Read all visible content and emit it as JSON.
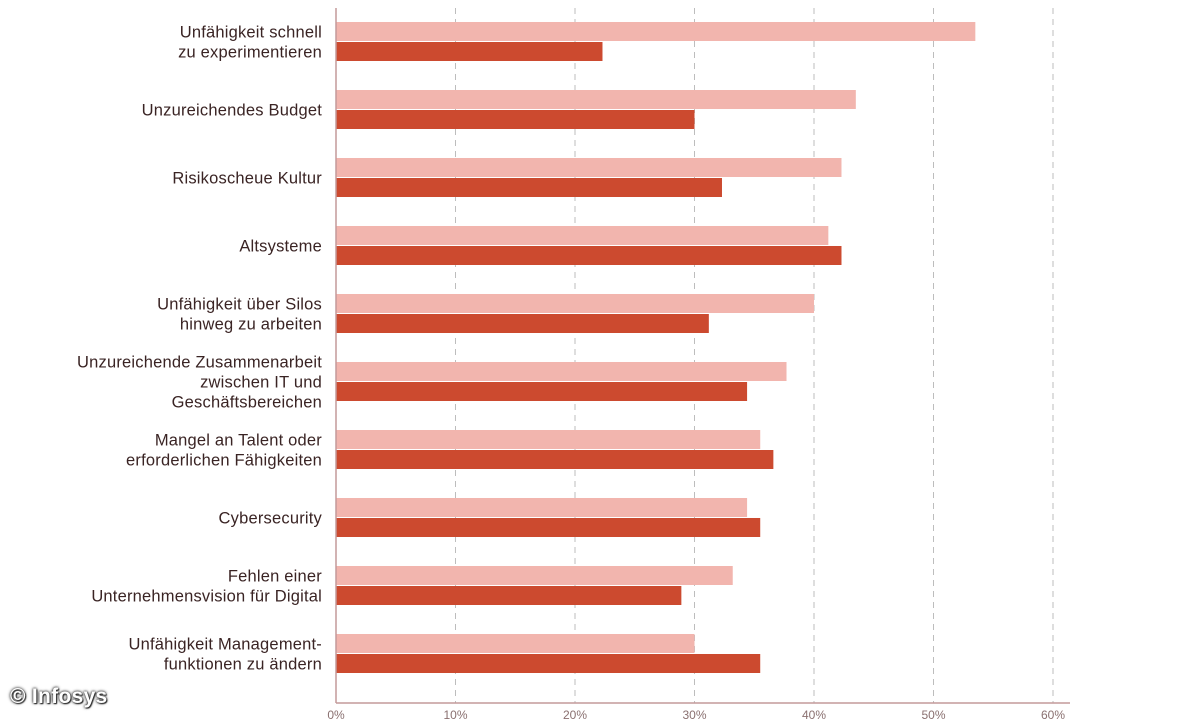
{
  "watermark": "© Infosys",
  "chart_data": {
    "type": "bar",
    "orientation": "horizontal",
    "title": "",
    "xlabel": "",
    "ylabel": "",
    "xlim": [
      0,
      60
    ],
    "x_ticks": [
      "0%",
      "10%",
      "20%",
      "30%",
      "40%",
      "50%",
      "60%"
    ],
    "grid": "vertical dashed",
    "colors": {
      "light": "#f2b5ae",
      "dark": "#cc4a2f",
      "axis": "#c49a9a",
      "grid": "#bdbdbd"
    },
    "categories": [
      [
        "Unfähigkeit schnell",
        "zu experimentieren"
      ],
      [
        "Unzureichendes Budget"
      ],
      [
        "Risikoscheue Kultur"
      ],
      [
        "Altsysteme"
      ],
      [
        "Unfähigkeit über Silos",
        "hinweg zu arbeiten"
      ],
      [
        "Unzureichende Zusammenarbeit",
        "zwischen IT und",
        "Geschäftsbereichen"
      ],
      [
        "Mangel an Talent oder",
        "erforderlichen Fähigkeiten"
      ],
      [
        "Cybersecurity"
      ],
      [
        "Fehlen einer",
        "Unternehmensvision für Digital"
      ],
      [
        "Unfähigkeit Management-",
        "funktionen zu ändern"
      ]
    ],
    "series": [
      {
        "color": "#f2b5ae",
        "values": [
          53.5,
          43.5,
          42.3,
          41.2,
          40,
          37.7,
          35.5,
          34.4,
          33.2,
          30
        ]
      },
      {
        "color": "#cc4a2f",
        "values": [
          22.3,
          30,
          32.3,
          42.3,
          31.2,
          34.4,
          36.6,
          35.5,
          28.9,
          35.5
        ]
      }
    ]
  }
}
